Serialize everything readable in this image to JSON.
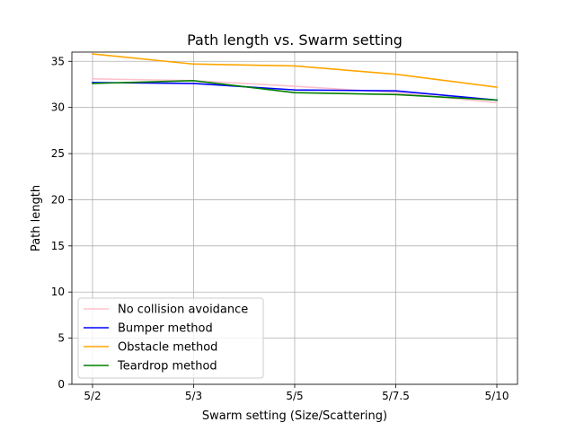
{
  "chart_data": {
    "type": "line",
    "title": "Path length vs. Swarm setting",
    "xlabel": "Swarm setting (Size/Scattering)",
    "ylabel": "Path length",
    "categories": [
      "5/2",
      "5/3",
      "5/5",
      "5/7.5",
      "5/10"
    ],
    "ylim": [
      0,
      36
    ],
    "yticks": [
      0,
      5,
      10,
      15,
      20,
      25,
      30,
      35
    ],
    "grid": true,
    "legend_position": "lower-left",
    "series": [
      {
        "name": "No collision avoidance",
        "color": "#ffc0cb",
        "values": [
          33.1,
          32.9,
          32.3,
          31.6,
          30.5
        ]
      },
      {
        "name": "Bumper method",
        "color": "#0000ff",
        "values": [
          32.7,
          32.6,
          31.9,
          31.8,
          30.8
        ]
      },
      {
        "name": "Obstacle method",
        "color": "#ffa500",
        "values": [
          35.8,
          34.7,
          34.5,
          33.6,
          32.2
        ]
      },
      {
        "name": "Teardrop method",
        "color": "#008000",
        "values": [
          32.6,
          32.9,
          31.6,
          31.4,
          30.8
        ]
      }
    ]
  }
}
